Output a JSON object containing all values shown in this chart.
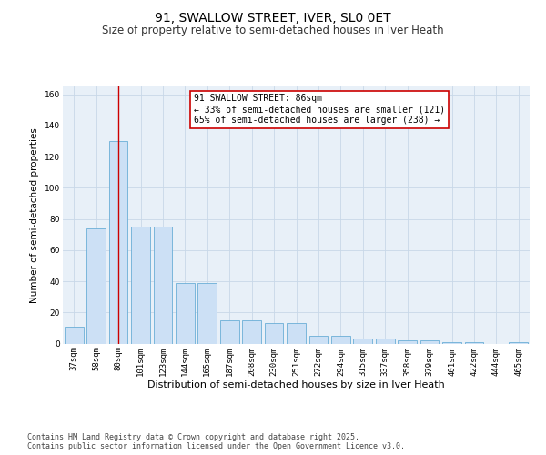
{
  "title": "91, SWALLOW STREET, IVER, SL0 0ET",
  "subtitle": "Size of property relative to semi-detached houses in Iver Heath",
  "xlabel": "Distribution of semi-detached houses by size in Iver Heath",
  "ylabel": "Number of semi-detached properties",
  "categories": [
    "37sqm",
    "58sqm",
    "80sqm",
    "101sqm",
    "123sqm",
    "144sqm",
    "165sqm",
    "187sqm",
    "208sqm",
    "230sqm",
    "251sqm",
    "272sqm",
    "294sqm",
    "315sqm",
    "337sqm",
    "358sqm",
    "379sqm",
    "401sqm",
    "422sqm",
    "444sqm",
    "465sqm"
  ],
  "values": [
    11,
    74,
    130,
    75,
    75,
    39,
    39,
    15,
    15,
    13,
    13,
    5,
    5,
    3,
    3,
    2,
    2,
    1,
    1,
    0,
    1
  ],
  "bar_color": "#cce0f5",
  "bar_edge_color": "#6aaed6",
  "vline_x": 2.0,
  "vline_color": "#cc0000",
  "annotation_text": "91 SWALLOW STREET: 86sqm\n← 33% of semi-detached houses are smaller (121)\n65% of semi-detached houses are larger (238) →",
  "annotation_box_color": "#ffffff",
  "annotation_box_edge": "#cc0000",
  "ylim": [
    0,
    165
  ],
  "yticks": [
    0,
    20,
    40,
    60,
    80,
    100,
    120,
    140,
    160
  ],
  "grid_color": "#c8d8e8",
  "background_color": "#e8f0f8",
  "footer_text": "Contains HM Land Registry data © Crown copyright and database right 2025.\nContains public sector information licensed under the Open Government Licence v3.0.",
  "title_fontsize": 10,
  "subtitle_fontsize": 8.5,
  "ylabel_fontsize": 7.5,
  "xlabel_fontsize": 8,
  "tick_fontsize": 6.5,
  "annotation_fontsize": 7,
  "footer_fontsize": 6
}
